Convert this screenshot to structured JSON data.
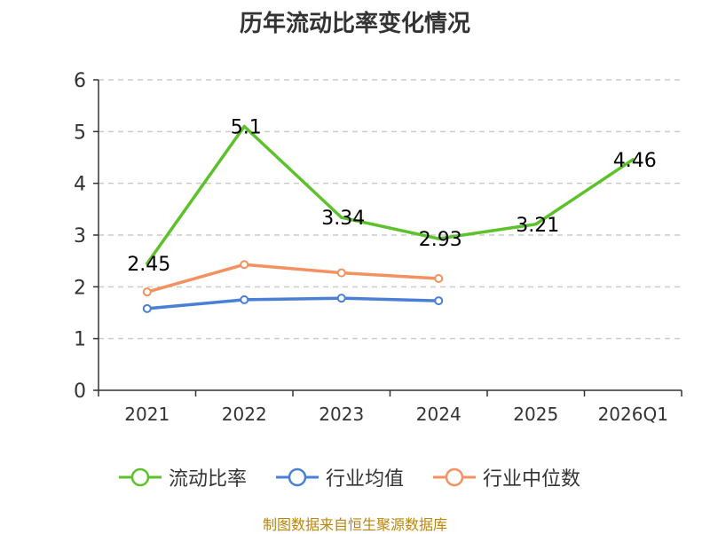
{
  "header": {
    "title": "历年流动比率变化情况"
  },
  "footer": {
    "source": "制图数据来自恒生聚源数据库"
  },
  "colors": {
    "axis": "#333333",
    "grid": "#cccccc",
    "text": "#333333",
    "source": "#b8860b"
  },
  "chart_data": {
    "type": "line",
    "title": "历年流动比率变化情况",
    "categories": [
      "2021",
      "2022",
      "2023",
      "2024",
      "2025",
      "2026Q1"
    ],
    "ylim": [
      0,
      6
    ],
    "yticks": [
      0,
      1,
      2,
      3,
      4,
      5,
      6
    ],
    "grid": true,
    "legend_position": "bottom",
    "series": [
      {
        "name": "流动比率",
        "color": "#5cc12b",
        "values": [
          2.45,
          5.1,
          3.34,
          2.93,
          3.21,
          4.46
        ],
        "labels": [
          "2.45",
          "5.1",
          "3.34",
          "2.93",
          "3.21",
          "4.46"
        ],
        "markers": false
      },
      {
        "name": "行业均值",
        "color": "#4a7fd6",
        "values": [
          1.58,
          1.75,
          1.78,
          1.73,
          null,
          null
        ],
        "markers": true
      },
      {
        "name": "行业中位数",
        "color": "#f39160",
        "values": [
          1.9,
          2.43,
          2.27,
          2.16,
          null,
          null
        ],
        "markers": true
      }
    ]
  }
}
